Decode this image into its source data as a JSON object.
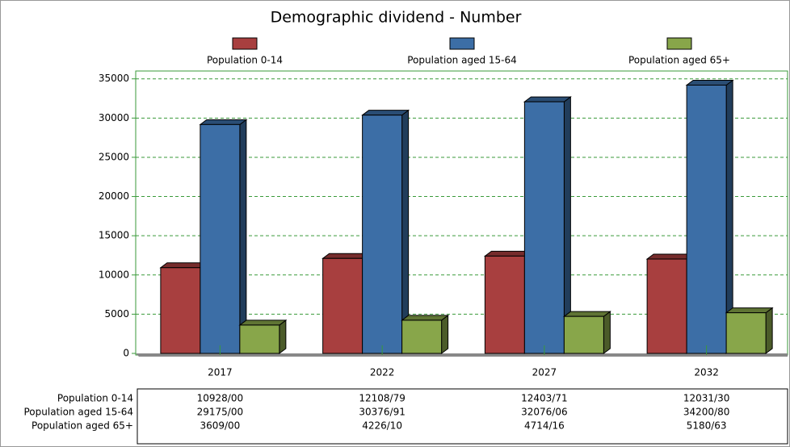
{
  "chart_data": {
    "type": "bar3d",
    "title": "Demographic dividend - Number",
    "categories": [
      "2017",
      "2022",
      "2027",
      "2032"
    ],
    "series": [
      {
        "name": "Population 0-14",
        "color": "#a83f3f",
        "values": [
          10928,
          12108.79,
          12403.71,
          12031.3
        ],
        "value_labels": [
          "10928/00",
          "12108/79",
          "12403/71",
          "12031/30"
        ]
      },
      {
        "name": "Population aged 15-64",
        "color": "#3c6ea6",
        "values": [
          29175,
          30376.91,
          32076.06,
          34200.8
        ],
        "value_labels": [
          "29175/00",
          "30376/91",
          "32076/06",
          "34200/80"
        ]
      },
      {
        "name": "Population aged 65+",
        "color": "#88a64a",
        "values": [
          3609,
          4226.1,
          4714.16,
          5180.63
        ],
        "value_labels": [
          "3609/00",
          "4226/10",
          "4714/16",
          "5180/63"
        ]
      }
    ],
    "ylim": [
      0,
      36000
    ],
    "yticks": [
      0,
      5000,
      10000,
      15000,
      20000,
      25000,
      30000,
      35000
    ],
    "grid": true
  }
}
